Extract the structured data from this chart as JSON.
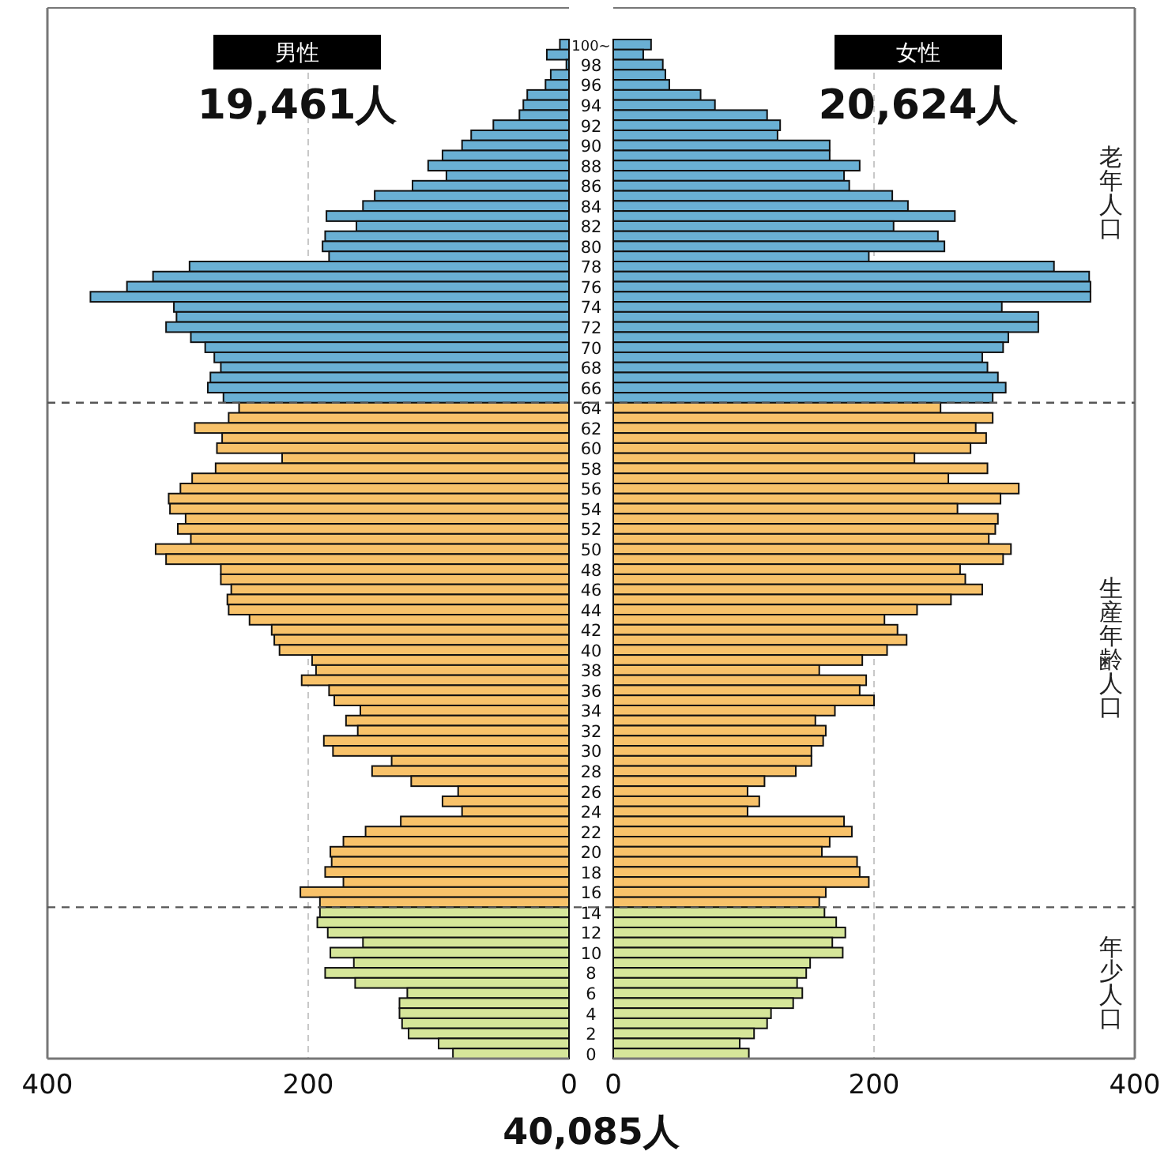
{
  "chart_data": [
    {
      "type": "bar",
      "orientation": "horizontal",
      "title": "男性",
      "subtitle": "19,461人",
      "annotations": [
        "40,085人"
      ],
      "x": [
        100,
        99,
        98,
        97,
        96,
        95,
        94,
        93,
        92,
        91,
        90,
        89,
        88,
        87,
        86,
        85,
        84,
        83,
        82,
        81,
        80,
        79,
        78,
        77,
        76,
        75,
        74,
        73,
        72,
        71,
        70,
        69,
        68,
        67,
        66,
        65,
        64,
        63,
        62,
        61,
        60,
        59,
        58,
        57,
        56,
        55,
        54,
        53,
        52,
        51,
        50,
        49,
        48,
        47,
        46,
        45,
        44,
        43,
        42,
        41,
        40,
        39,
        38,
        37,
        36,
        35,
        34,
        33,
        32,
        31,
        30,
        29,
        28,
        27,
        26,
        25,
        24,
        23,
        22,
        21,
        20,
        19,
        18,
        17,
        16,
        15,
        14,
        13,
        12,
        11,
        10,
        9,
        8,
        7,
        6,
        5,
        4,
        3,
        2,
        1,
        0
      ],
      "values": [
        7,
        17,
        2,
        14,
        18,
        32,
        35,
        38,
        58,
        75,
        82,
        97,
        108,
        94,
        120,
        149,
        158,
        186,
        163,
        187,
        189,
        184,
        291,
        319,
        339,
        367,
        303,
        301,
        309,
        290,
        279,
        272,
        267,
        275,
        277,
        265,
        253,
        261,
        287,
        266,
        270,
        220,
        271,
        289,
        298,
        307,
        306,
        294,
        300,
        290,
        317,
        309,
        267,
        267,
        259,
        262,
        261,
        245,
        228,
        226,
        222,
        197,
        194,
        205,
        184,
        180,
        160,
        171,
        162,
        188,
        181,
        136,
        151,
        121,
        85,
        97,
        82,
        129,
        156,
        173,
        183,
        182,
        187,
        173,
        206,
        191,
        191,
        193,
        185,
        158,
        183,
        165,
        187,
        164,
        124,
        130,
        130,
        128,
        123,
        100,
        89
      ],
      "colors": [
        "#6ab0d4",
        "#6ab0d4",
        "#6ab0d4",
        "#6ab0d4",
        "#6ab0d4",
        "#6ab0d4",
        "#6ab0d4",
        "#6ab0d4",
        "#6ab0d4",
        "#6ab0d4",
        "#6ab0d4",
        "#6ab0d4",
        "#6ab0d4",
        "#6ab0d4",
        "#6ab0d4",
        "#6ab0d4",
        "#6ab0d4",
        "#6ab0d4",
        "#6ab0d4",
        "#6ab0d4",
        "#6ab0d4",
        "#6ab0d4",
        "#6ab0d4",
        "#6ab0d4",
        "#6ab0d4",
        "#6ab0d4",
        "#6ab0d4",
        "#6ab0d4",
        "#6ab0d4",
        "#6ab0d4",
        "#6ab0d4",
        "#6ab0d4",
        "#6ab0d4",
        "#6ab0d4",
        "#6ab0d4",
        "#6ab0d4",
        "#f8c26a",
        "#f8c26a",
        "#f8c26a",
        "#f8c26a",
        "#f8c26a",
        "#f8c26a",
        "#f8c26a",
        "#f8c26a",
        "#f8c26a",
        "#f8c26a",
        "#f8c26a",
        "#f8c26a",
        "#f8c26a",
        "#f8c26a",
        "#f8c26a",
        "#f8c26a",
        "#f8c26a",
        "#f8c26a",
        "#f8c26a",
        "#f8c26a",
        "#f8c26a",
        "#f8c26a",
        "#f8c26a",
        "#f8c26a",
        "#f8c26a",
        "#f8c26a",
        "#f8c26a",
        "#f8c26a",
        "#f8c26a",
        "#f8c26a",
        "#f8c26a",
        "#f8c26a",
        "#f8c26a",
        "#f8c26a",
        "#f8c26a",
        "#f8c26a",
        "#f8c26a",
        "#f8c26a",
        "#f8c26a",
        "#f8c26a",
        "#f8c26a",
        "#f8c26a",
        "#f8c26a",
        "#f8c26a",
        "#f8c26a",
        "#f8c26a",
        "#f8c26a",
        "#f8c26a",
        "#f8c26a",
        "#f8c26a",
        "#d6e69a",
        "#d6e69a",
        "#d6e69a",
        "#d6e69a",
        "#d6e69a",
        "#d6e69a",
        "#d6e69a",
        "#d6e69a",
        "#d6e69a",
        "#d6e69a",
        "#d6e69a",
        "#d6e69a",
        "#d6e69a",
        "#d6e69a",
        "#d6e69a"
      ],
      "xlim": [
        400,
        0
      ],
      "xticks": [
        400,
        200,
        0
      ],
      "ylim": [
        -0.5,
        100.5
      ],
      "yticks": [
        {
          "value": 100,
          "label": "100~"
        },
        98,
        96,
        94,
        92,
        90,
        88,
        86,
        84,
        82,
        80,
        78,
        76,
        74,
        72,
        70,
        68,
        66,
        64,
        62,
        60,
        58,
        56,
        54,
        52,
        50,
        48,
        46,
        44,
        42,
        40,
        38,
        36,
        34,
        32,
        30,
        28,
        26,
        24,
        22,
        20,
        18,
        16,
        14,
        12,
        10,
        8,
        6,
        4,
        2,
        0
      ],
      "grid": "x",
      "ref_lines": [
        {
          "axis": "y",
          "value": 64.5,
          "line_style": "dashed"
        },
        {
          "axis": "y",
          "value": 14.5,
          "line_style": "dashed"
        }
      ]
    },
    {
      "type": "bar",
      "orientation": "horizontal",
      "title": "女性",
      "subtitle": "20,624人",
      "x": [
        100,
        99,
        98,
        97,
        96,
        95,
        94,
        93,
        92,
        91,
        90,
        89,
        88,
        87,
        86,
        85,
        84,
        83,
        82,
        81,
        80,
        79,
        78,
        77,
        76,
        75,
        74,
        73,
        72,
        71,
        70,
        69,
        68,
        67,
        66,
        65,
        64,
        63,
        62,
        61,
        60,
        59,
        58,
        57,
        56,
        55,
        54,
        53,
        52,
        51,
        50,
        49,
        48,
        47,
        46,
        45,
        44,
        43,
        42,
        41,
        40,
        39,
        38,
        37,
        36,
        35,
        34,
        33,
        32,
        31,
        30,
        29,
        28,
        27,
        26,
        25,
        24,
        23,
        22,
        21,
        20,
        19,
        18,
        17,
        16,
        15,
        14,
        13,
        12,
        11,
        10,
        9,
        8,
        7,
        6,
        5,
        4,
        3,
        2,
        1,
        0
      ],
      "values": [
        29,
        23,
        38,
        40,
        43,
        67,
        78,
        118,
        128,
        126,
        166,
        166,
        189,
        177,
        181,
        214,
        226,
        262,
        215,
        249,
        254,
        196,
        338,
        365,
        366,
        366,
        298,
        326,
        326,
        303,
        299,
        283,
        287,
        295,
        301,
        291,
        251,
        291,
        278,
        286,
        274,
        231,
        287,
        257,
        311,
        297,
        264,
        295,
        293,
        288,
        305,
        299,
        266,
        270,
        283,
        259,
        233,
        208,
        218,
        225,
        210,
        191,
        158,
        194,
        189,
        200,
        170,
        155,
        163,
        161,
        152,
        152,
        140,
        116,
        103,
        112,
        103,
        177,
        183,
        166,
        160,
        187,
        189,
        196,
        163,
        158,
        162,
        171,
        178,
        168,
        176,
        151,
        148,
        141,
        145,
        138,
        121,
        118,
        108,
        97,
        104
      ],
      "colors": [
        "#6ab0d4",
        "#6ab0d4",
        "#6ab0d4",
        "#6ab0d4",
        "#6ab0d4",
        "#6ab0d4",
        "#6ab0d4",
        "#6ab0d4",
        "#6ab0d4",
        "#6ab0d4",
        "#6ab0d4",
        "#6ab0d4",
        "#6ab0d4",
        "#6ab0d4",
        "#6ab0d4",
        "#6ab0d4",
        "#6ab0d4",
        "#6ab0d4",
        "#6ab0d4",
        "#6ab0d4",
        "#6ab0d4",
        "#6ab0d4",
        "#6ab0d4",
        "#6ab0d4",
        "#6ab0d4",
        "#6ab0d4",
        "#6ab0d4",
        "#6ab0d4",
        "#6ab0d4",
        "#6ab0d4",
        "#6ab0d4",
        "#6ab0d4",
        "#6ab0d4",
        "#6ab0d4",
        "#6ab0d4",
        "#6ab0d4",
        "#f8c26a",
        "#f8c26a",
        "#f8c26a",
        "#f8c26a",
        "#f8c26a",
        "#f8c26a",
        "#f8c26a",
        "#f8c26a",
        "#f8c26a",
        "#f8c26a",
        "#f8c26a",
        "#f8c26a",
        "#f8c26a",
        "#f8c26a",
        "#f8c26a",
        "#f8c26a",
        "#f8c26a",
        "#f8c26a",
        "#f8c26a",
        "#f8c26a",
        "#f8c26a",
        "#f8c26a",
        "#f8c26a",
        "#f8c26a",
        "#f8c26a",
        "#f8c26a",
        "#f8c26a",
        "#f8c26a",
        "#f8c26a",
        "#f8c26a",
        "#f8c26a",
        "#f8c26a",
        "#f8c26a",
        "#f8c26a",
        "#f8c26a",
        "#f8c26a",
        "#f8c26a",
        "#f8c26a",
        "#f8c26a",
        "#f8c26a",
        "#f8c26a",
        "#f8c26a",
        "#f8c26a",
        "#f8c26a",
        "#f8c26a",
        "#f8c26a",
        "#f8c26a",
        "#f8c26a",
        "#f8c26a",
        "#f8c26a",
        "#d6e69a",
        "#d6e69a",
        "#d6e69a",
        "#d6e69a",
        "#d6e69a",
        "#d6e69a",
        "#d6e69a",
        "#d6e69a",
        "#d6e69a",
        "#d6e69a",
        "#d6e69a",
        "#d6e69a",
        "#d6e69a",
        "#d6e69a",
        "#d6e69a"
      ],
      "xlim": [
        0,
        400
      ],
      "xticks": [
        0,
        200,
        400
      ],
      "ylim": [
        -0.5,
        100.5
      ],
      "tick_labels": "x",
      "grid": "x",
      "annotations": [
        "老年人口",
        "生産年齢人口",
        "年少人口"
      ],
      "ref_lines": [
        {
          "axis": "y",
          "value": 64.5,
          "line_style": "dashed"
        },
        {
          "axis": "y",
          "value": 14.5,
          "line_style": "dashed"
        }
      ]
    }
  ]
}
